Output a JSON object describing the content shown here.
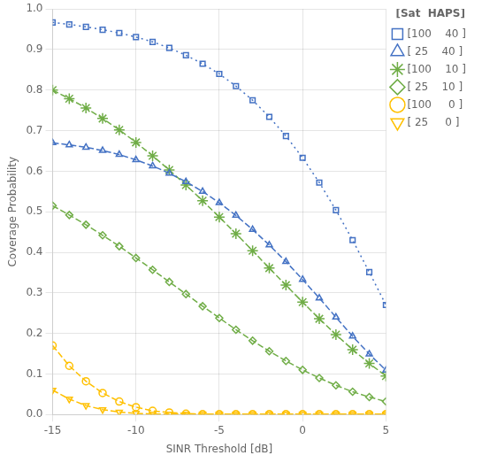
{
  "chart_data": {
    "type": "line",
    "xlabel": "SINR Threshold [dB]",
    "ylabel": "Coverage Probability",
    "xlim": [
      -15,
      5
    ],
    "ylim": [
      0,
      1
    ],
    "xticks": [
      -15,
      -10,
      -5,
      0,
      5
    ],
    "yticks": [
      {
        "value": 0,
        "label": "0.0"
      },
      0.1,
      0.2,
      0.3,
      0.4,
      0.5,
      0.6,
      0.7,
      0.8,
      0.9,
      {
        "value": 1,
        "label": "1.0"
      }
    ],
    "grid": true,
    "legend": "upper right",
    "legend_title": "[Sat  HAPS]",
    "x": [
      -15,
      -14,
      -13,
      -12,
      -11,
      -10,
      -9,
      -8,
      -7,
      -6,
      -5,
      -4,
      -3,
      -2,
      -1,
      0,
      1,
      2,
      3,
      4,
      5
    ],
    "series": [
      {
        "name": "[100    40 ]",
        "color": "#4472C4",
        "line_style": "dotted",
        "marker": "square",
        "values": [
          0.967,
          0.962,
          0.956,
          0.949,
          0.941,
          0.931,
          0.919,
          0.904,
          0.886,
          0.865,
          0.84,
          0.81,
          0.775,
          0.734,
          0.687,
          0.633,
          0.572,
          0.504,
          0.43,
          0.351,
          0.27
        ]
      },
      {
        "name": "[ 25    40 ]",
        "color": "#4472C4",
        "line_style": "dashed",
        "marker": "triangle-up",
        "values": [
          0.67,
          0.665,
          0.659,
          0.651,
          0.641,
          0.628,
          0.613,
          0.595,
          0.574,
          0.55,
          0.522,
          0.491,
          0.456,
          0.418,
          0.377,
          0.333,
          0.287,
          0.24,
          0.193,
          0.149,
          0.109
        ]
      },
      {
        "name": "[100    10 ]",
        "color": "#70AD47",
        "line_style": "dashed",
        "marker": "star",
        "values": [
          0.8,
          0.779,
          0.756,
          0.73,
          0.702,
          0.671,
          0.638,
          0.603,
          0.566,
          0.527,
          0.487,
          0.446,
          0.404,
          0.361,
          0.319,
          0.277,
          0.236,
          0.197,
          0.16,
          0.126,
          0.095
        ]
      },
      {
        "name": "[ 25    10 ]",
        "color": "#70AD47",
        "line_style": "dashed",
        "marker": "diamond",
        "values": [
          0.515,
          0.492,
          0.468,
          0.442,
          0.415,
          0.386,
          0.357,
          0.327,
          0.297,
          0.267,
          0.238,
          0.209,
          0.182,
          0.156,
          0.132,
          0.11,
          0.09,
          0.072,
          0.056,
          0.043,
          0.032
        ]
      },
      {
        "name": "[100     0 ]",
        "color": "#FFC000",
        "line_style": "dashed",
        "marker": "circle",
        "values": [
          0.17,
          0.12,
          0.082,
          0.053,
          0.032,
          0.018,
          0.009,
          0.005,
          0.002,
          0.001,
          0.001,
          0.001,
          0.001,
          0.001,
          0.001,
          0.001,
          0.001,
          0.001,
          0.001,
          0.001,
          0.001
        ]
      },
      {
        "name": "[ 25     0 ]",
        "color": "#FFC000",
        "line_style": "dashed",
        "marker": "triangle-down",
        "values": [
          0.06,
          0.038,
          0.022,
          0.012,
          0.006,
          0.003,
          0.001,
          0.001,
          0.001,
          0.001,
          0.001,
          0.001,
          0.001,
          0.001,
          0.001,
          0.001,
          0.001,
          0.001,
          0.001,
          0.001,
          0.001
        ]
      }
    ]
  }
}
